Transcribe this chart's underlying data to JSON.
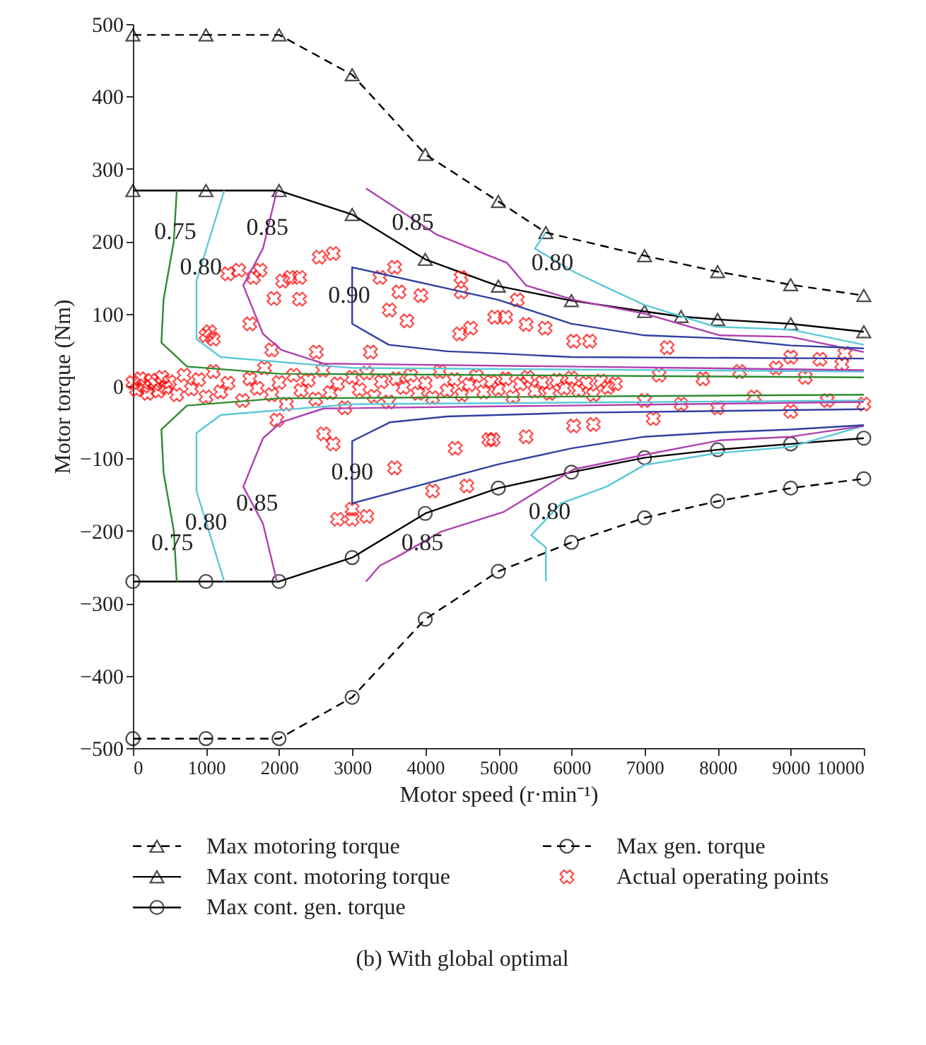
{
  "chart_data": {
    "type": "line",
    "title": "(b)  With global optimal",
    "xlabel": "Motor speed (r·min⁻¹)",
    "ylabel": "Motor torque (Nm)",
    "xlim": [
      0,
      10000
    ],
    "ylim": [
      -500,
      500
    ],
    "xticks": [
      0,
      1000,
      2000,
      3000,
      4000,
      5000,
      6000,
      7000,
      8000,
      9000,
      10000
    ],
    "yticks": [
      -500,
      -400,
      -300,
      -200,
      -100,
      0,
      100,
      200,
      300,
      400,
      500
    ],
    "legend": "bottom",
    "series": [
      {
        "name": "Max motoring torque",
        "color": "#000000",
        "marker": "triangle",
        "line_style": "dashed",
        "x": [
          0,
          1000,
          2000,
          3000,
          4000,
          5000,
          5650,
          7000,
          8000,
          9000,
          10000
        ],
        "values": [
          485,
          485,
          485,
          430,
          320,
          255,
          212,
          180,
          158,
          140,
          125
        ]
      },
      {
        "name": "Max cont. motoring torque",
        "color": "#000000",
        "marker": "triangle",
        "line_style": "solid",
        "x": [
          0,
          1000,
          2000,
          3000,
          4000,
          5000,
          6000,
          7000,
          7500,
          8000,
          9000,
          10000
        ],
        "values": [
          270,
          270,
          270,
          237,
          175,
          138,
          118,
          103,
          96,
          92,
          86,
          75
        ]
      },
      {
        "name": "Max cont. gen. torque",
        "color": "#000000",
        "marker": "circle",
        "line_style": "solid",
        "x": [
          0,
          1000,
          2000,
          3000,
          4000,
          5000,
          6000,
          7000,
          8000,
          9000,
          10000
        ],
        "values": [
          -270,
          -270,
          -270,
          -237,
          -176,
          -141,
          -119,
          -99,
          -88,
          -80,
          -72
        ]
      },
      {
        "name": "Max gen. torque",
        "color": "#000000",
        "marker": "circle",
        "line_style": "dashed",
        "x": [
          0,
          1000,
          2000,
          3000,
          4000,
          5000,
          6000,
          7000,
          8000,
          9000,
          10000
        ],
        "values": [
          -487,
          -487,
          -487,
          -430,
          -322,
          -256,
          -216,
          -182,
          -159,
          -141,
          -128
        ]
      },
      {
        "name": "Actual operating points",
        "type": "scatter",
        "color": "#ff0000",
        "marker": "cross",
        "x": [
          0,
          50,
          100,
          150,
          200,
          250,
          300,
          350,
          400,
          450,
          500,
          600,
          700,
          800,
          900,
          1000,
          1100,
          1200,
          1300,
          1500,
          1600,
          1700,
          1800,
          1900,
          2000,
          2100,
          2200,
          2300,
          2400,
          2500,
          2600,
          2700,
          2800,
          2900,
          3000,
          3100,
          3200,
          3300,
          3400,
          3500,
          3600,
          3700,
          3800,
          3900,
          4000,
          4100,
          4200,
          4300,
          4400,
          4500,
          4600,
          4700,
          4800,
          4900,
          5000,
          5100,
          5200,
          5300,
          5400,
          5500,
          5600,
          5700,
          5800,
          5900,
          6000,
          6100,
          6200,
          6300,
          6400,
          6500,
          6600,
          7000,
          7200,
          7500,
          7800,
          8000,
          8300,
          8500,
          8800,
          9000,
          9200,
          9500,
          9700,
          10000,
          1000,
          1050,
          1100,
          1300,
          1450,
          1650,
          1740,
          1930,
          2050,
          2150,
          2280,
          2280,
          2550,
          2740,
          1600,
          1900,
          2510,
          3250,
          3380,
          3580,
          3640,
          3940,
          4490,
          4490,
          3510,
          3750,
          4470,
          4620,
          4950,
          5100,
          5260,
          5380,
          5640,
          6030,
          6250,
          7310,
          9000,
          9400,
          9740,
          1970,
          2610,
          2740,
          3580,
          3000,
          2800,
          3200,
          3000,
          4410,
          4100,
          4870,
          4570,
          4930,
          5380,
          6030,
          6300,
          7120
        ],
        "values": [
          5,
          -5,
          10,
          0,
          -10,
          8,
          3,
          -7,
          12,
          -2,
          6,
          -12,
          15,
          -4,
          9,
          -15,
          20,
          -8,
          4,
          -20,
          10,
          -3,
          25,
          -12,
          5,
          -25,
          15,
          -6,
          8,
          -18,
          22,
          -9,
          3,
          -30,
          12,
          -5,
          18,
          -14,
          6,
          -22,
          10,
          -2,
          15,
          -10,
          4,
          -16,
          20,
          -6,
          9,
          -12,
          2,
          14,
          -8,
          6,
          -4,
          10,
          -15,
          3,
          12,
          -7,
          5,
          -10,
          8,
          -3,
          11,
          -6,
          4,
          -12,
          7,
          -2,
          3,
          -20,
          15,
          -25,
          10,
          -30,
          20,
          -15,
          25,
          -35,
          12,
          -20,
          30,
          -25,
          70,
          75,
          65,
          155,
          160,
          150,
          160,
          121,
          145,
          150,
          150,
          120,
          178,
          183,
          86,
          50,
          47,
          47,
          150,
          164,
          130,
          125,
          150,
          130,
          105,
          90,
          72,
          80,
          95,
          95,
          119,
          85,
          80,
          62,
          62,
          53,
          40,
          37,
          45,
          -47,
          -66,
          -80,
          -113,
          -184,
          -184,
          -180,
          -170,
          -86,
          -145,
          -74,
          -138,
          -74,
          -70,
          -55,
          -53,
          -45
        ]
      },
      {
        "type": "line",
        "color": "#2e8b2e",
        "marker": "none",
        "x": [
          600,
          560,
          420,
          390,
          740,
          2000,
          10000
        ],
        "values": [
          270,
          200,
          120,
          60,
          27,
          17,
          12
        ]
      },
      {
        "type": "line",
        "color": "#2e8b2e",
        "marker": "none",
        "x": [
          600,
          560,
          420,
          390,
          740,
          2000,
          10000
        ],
        "values": [
          -270,
          -200,
          -120,
          -60,
          -27,
          -17,
          -12
        ]
      },
      {
        "type": "line",
        "color": "#5bc8d8",
        "marker": "none",
        "x": [
          1250,
          870,
          870,
          1200,
          3000,
          10000
        ],
        "values": [
          270,
          145,
          65,
          40,
          25,
          20
        ]
      },
      {
        "type": "line",
        "color": "#5bc8d8",
        "marker": "none",
        "x": [
          1250,
          1060,
          870,
          870,
          1200,
          3000,
          10000
        ],
        "values": [
          -270,
          -207,
          -145,
          -65,
          -40,
          -25,
          -20
        ]
      },
      {
        "type": "line",
        "color": "#5bc8d8",
        "marker": "none",
        "x": [
          5650,
          5500,
          6030,
          6400,
          7000,
          7970,
          9000,
          10000
        ],
        "values": [
          212,
          190,
          158,
          140,
          112,
          82,
          78,
          57
        ]
      },
      {
        "type": "line",
        "color": "#5bc8d8",
        "marker": "none",
        "x": [
          5650,
          5650,
          5450,
          5860,
          6480,
          7000,
          7970,
          9000,
          10000
        ],
        "values": [
          -270,
          -223,
          -206,
          -162,
          -139,
          -109,
          -93,
          -84,
          -55
        ]
      },
      {
        "type": "line",
        "color": "#b040b0",
        "marker": "none",
        "x": [
          1970,
          1780,
          1510,
          1780,
          2030,
          2610,
          10000
        ],
        "values": [
          270,
          190,
          139,
          72,
          50,
          31,
          22
        ]
      },
      {
        "type": "line",
        "color": "#b040b0",
        "marker": "none",
        "x": [
          1970,
          1780,
          1510,
          1780,
          2030,
          2610,
          10000
        ],
        "values": [
          -270,
          -190,
          -139,
          -72,
          -50,
          -31,
          -22
        ]
      },
      {
        "type": "line",
        "color": "#b040b0",
        "marker": "none",
        "x": [
          3190,
          4160,
          5120,
          5380,
          6030,
          7000,
          8030,
          9000,
          10000
        ],
        "values": [
          273,
          209,
          170,
          139,
          119,
          100,
          70,
          68,
          47
        ]
      },
      {
        "type": "line",
        "color": "#b040b0",
        "marker": "none",
        "x": [
          3190,
          3380,
          3630,
          4220,
          5070,
          6030,
          7000,
          8030,
          9000,
          10000
        ],
        "values": [
          -270,
          -248,
          -235,
          -201,
          -174,
          -115,
          -95,
          -75,
          -70,
          -55
        ]
      },
      {
        "type": "line",
        "color": "#3040a0",
        "marker": "none",
        "x": [
          10000,
          9000,
          8000,
          7000,
          6000,
          5000,
          3000,
          3000,
          3500,
          4300,
          5000,
          6000,
          10000
        ],
        "values": [
          52,
          56,
          66,
          70,
          86,
          119,
          164,
          86,
          57,
          48,
          45,
          40,
          38
        ]
      },
      {
        "type": "line",
        "color": "#3040a0",
        "marker": "none",
        "x": [
          10000,
          9000,
          8000,
          7000,
          6000,
          5000,
          3000,
          3000,
          3520,
          4300,
          6000,
          10000
        ],
        "values": [
          -54,
          -60,
          -64,
          -70,
          -86,
          -108,
          -162,
          -76,
          -50,
          -42,
          -37,
          -32
        ]
      }
    ],
    "annotations": [
      {
        "text": "0.75",
        "x": 580,
        "y": 213
      },
      {
        "text": "0.80",
        "x": 930,
        "y": 164
      },
      {
        "text": "0.85",
        "x": 1840,
        "y": 219
      },
      {
        "text": "0.85",
        "x": 3830,
        "y": 226
      },
      {
        "text": "0.90",
        "x": 2960,
        "y": 125
      },
      {
        "text": "0.80",
        "x": 5740,
        "y": 170
      },
      {
        "text": "0.90",
        "x": 3000,
        "y": -119
      },
      {
        "text": "0.85",
        "x": 1700,
        "y": -162
      },
      {
        "text": "0.80",
        "x": 1000,
        "y": -188
      },
      {
        "text": "0.75",
        "x": 540,
        "y": -217
      },
      {
        "text": "0.85",
        "x": 3960,
        "y": -217
      },
      {
        "text": "0.80",
        "x": 5700,
        "y": -174
      }
    ]
  }
}
